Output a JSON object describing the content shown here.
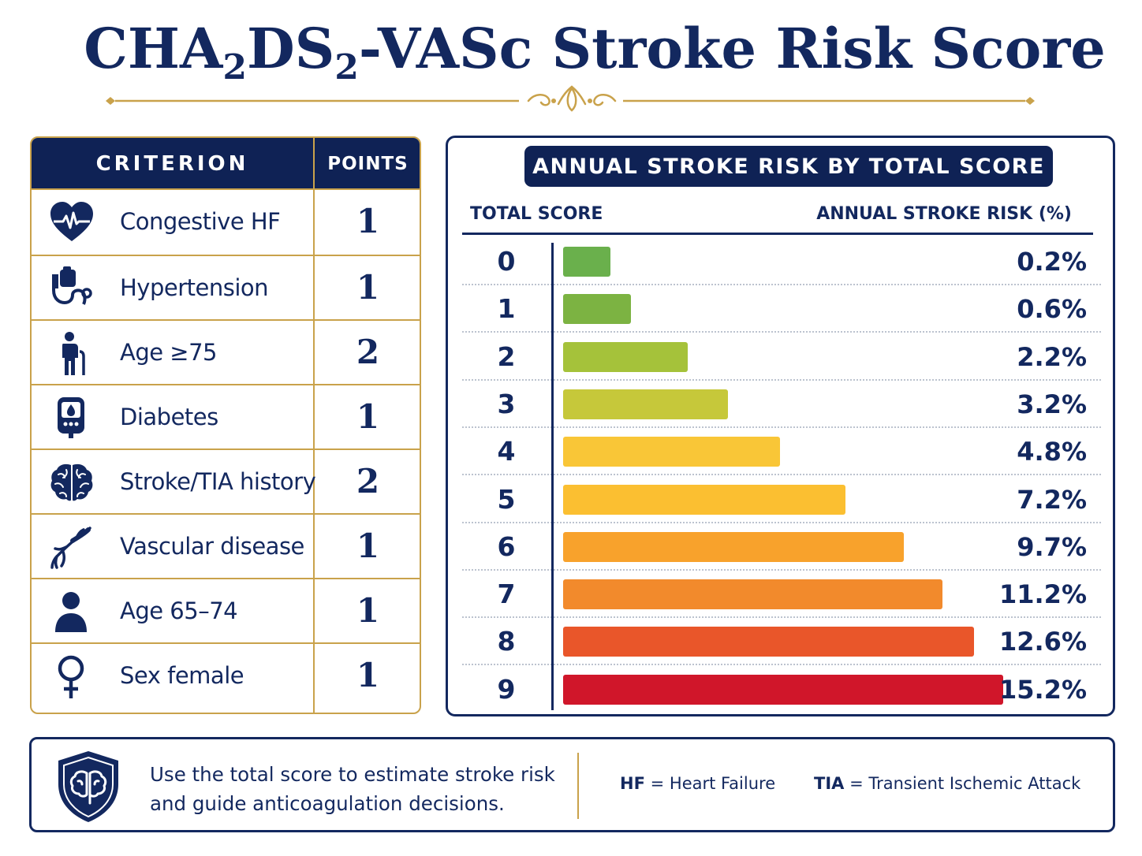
{
  "title": {
    "part1": "CHA",
    "sub1": "2",
    "part2": "DS",
    "sub2": "2",
    "part3": "-VASc Stroke Risk Score"
  },
  "criteria_table": {
    "header_criterion": "CRITERION",
    "header_points": "POINTS",
    "rows": [
      {
        "label": "Congestive HF",
        "points": "1",
        "icon": "heart-pulse-icon"
      },
      {
        "label": "Hypertension",
        "points": "1",
        "icon": "blood-pressure-cuff-icon"
      },
      {
        "label": "Age ≥75",
        "points": "2",
        "icon": "elderly-person-cane-icon"
      },
      {
        "label": "Diabetes",
        "points": "1",
        "icon": "glucose-meter-icon"
      },
      {
        "label": "Stroke/TIA history",
        "points": "2",
        "icon": "brain-icon"
      },
      {
        "label": "Vascular disease",
        "points": "1",
        "icon": "blood-vessel-icon"
      },
      {
        "label": "Age 65–74",
        "points": "1",
        "icon": "person-icon"
      },
      {
        "label": "Sex female",
        "points": "1",
        "icon": "female-symbol-icon"
      }
    ]
  },
  "chart_data": {
    "type": "bar",
    "orientation": "horizontal",
    "title": "ANNUAL STROKE RISK BY TOTAL SCORE",
    "xlabel": "ANNUAL STROKE RISK (%)",
    "ylabel": "TOTAL SCORE",
    "categories": [
      "0",
      "1",
      "2",
      "3",
      "4",
      "5",
      "6",
      "7",
      "8",
      "9"
    ],
    "values": [
      0.2,
      0.6,
      2.2,
      3.2,
      4.8,
      7.2,
      9.7,
      11.2,
      12.6,
      15.2
    ],
    "value_labels": [
      "0.2%",
      "0.6%",
      "2.2%",
      "3.2%",
      "4.8%",
      "7.2%",
      "9.7%",
      "11.2%",
      "12.6%",
      "15.2%"
    ],
    "bar_lengths": [
      0.108,
      0.154,
      0.284,
      0.374,
      0.492,
      0.642,
      0.774,
      0.862,
      0.934,
      1.0
    ],
    "bar_colors": [
      "#6ab04c",
      "#7cb342",
      "#a5c23a",
      "#c6c83a",
      "#f9c637",
      "#fbbf31",
      "#f8a22c",
      "#f28a2c",
      "#e9562a",
      "#d0162a"
    ],
    "grid": false,
    "legend": "none"
  },
  "footer": {
    "note": "Use the total score to estimate stroke risk and guide anticoagulation decisions.",
    "abbr1_key": "HF",
    "abbr1_eq": "=",
    "abbr1_val": "Heart Failure",
    "abbr2_key": "TIA",
    "abbr2_eq": "=",
    "abbr2_val": "Transient Ischemic Attack",
    "icon": "brain-shield-icon"
  },
  "colors": {
    "navy": "#0f2255",
    "gold": "#c9a24b"
  }
}
